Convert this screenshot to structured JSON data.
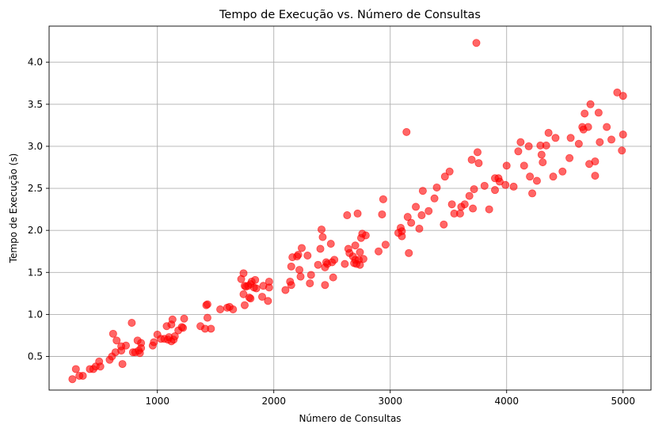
{
  "chart_data": {
    "type": "scatter",
    "title": "Tempo de Execução vs. Número de Consultas",
    "xlabel": "Número de Consultas",
    "ylabel": "Tempo de Execução (s)",
    "xlim": [
      70,
      5240
    ],
    "ylim": [
      0.1,
      4.43
    ],
    "xticks": [
      1000,
      2000,
      3000,
      4000,
      5000
    ],
    "yticks": [
      0.5,
      1.0,
      1.5,
      2.0,
      2.5,
      3.0,
      3.5,
      4.0
    ],
    "xtick_labels": [
      "1000",
      "2000",
      "3000",
      "4000",
      "5000"
    ],
    "ytick_labels": [
      "0.5",
      "1.0",
      "1.5",
      "2.0",
      "2.5",
      "3.0",
      "3.5",
      "4.0"
    ],
    "grid": true,
    "marker_color": "#ff0000",
    "marker_opacity": 0.6,
    "points": [
      [
        270,
        0.23
      ],
      [
        300,
        0.35
      ],
      [
        330,
        0.27
      ],
      [
        360,
        0.27
      ],
      [
        420,
        0.35
      ],
      [
        450,
        0.35
      ],
      [
        470,
        0.38
      ],
      [
        500,
        0.44
      ],
      [
        510,
        0.38
      ],
      [
        590,
        0.46
      ],
      [
        610,
        0.5
      ],
      [
        620,
        0.77
      ],
      [
        640,
        0.55
      ],
      [
        650,
        0.69
      ],
      [
        690,
        0.62
      ],
      [
        690,
        0.57
      ],
      [
        700,
        0.41
      ],
      [
        730,
        0.63
      ],
      [
        780,
        0.9
      ],
      [
        790,
        0.55
      ],
      [
        810,
        0.55
      ],
      [
        830,
        0.69
      ],
      [
        840,
        0.57
      ],
      [
        850,
        0.54
      ],
      [
        860,
        0.6
      ],
      [
        860,
        0.66
      ],
      [
        960,
        0.63
      ],
      [
        970,
        0.67
      ],
      [
        1000,
        0.76
      ],
      [
        1030,
        0.71
      ],
      [
        1060,
        0.71
      ],
      [
        1080,
        0.86
      ],
      [
        1090,
        0.7
      ],
      [
        1100,
        0.73
      ],
      [
        1120,
        0.68
      ],
      [
        1120,
        0.88
      ],
      [
        1130,
        0.94
      ],
      [
        1140,
        0.7
      ],
      [
        1150,
        0.74
      ],
      [
        1180,
        0.81
      ],
      [
        1210,
        0.85
      ],
      [
        1220,
        0.84
      ],
      [
        1230,
        0.95
      ],
      [
        1370,
        0.86
      ],
      [
        1410,
        0.83
      ],
      [
        1420,
        1.11
      ],
      [
        1430,
        1.12
      ],
      [
        1430,
        0.96
      ],
      [
        1460,
        0.83
      ],
      [
        1540,
        1.06
      ],
      [
        1600,
        1.08
      ],
      [
        1620,
        1.09
      ],
      [
        1650,
        1.06
      ],
      [
        1720,
        1.42
      ],
      [
        1740,
        1.24
      ],
      [
        1740,
        1.49
      ],
      [
        1750,
        1.11
      ],
      [
        1750,
        1.34
      ],
      [
        1760,
        1.33
      ],
      [
        1780,
        1.34
      ],
      [
        1790,
        1.2
      ],
      [
        1800,
        1.19
      ],
      [
        1800,
        1.36
      ],
      [
        1810,
        1.39
      ],
      [
        1830,
        1.32
      ],
      [
        1840,
        1.41
      ],
      [
        1850,
        1.31
      ],
      [
        1900,
        1.21
      ],
      [
        1910,
        1.34
      ],
      [
        1950,
        1.16
      ],
      [
        1960,
        1.39
      ],
      [
        1960,
        1.32
      ],
      [
        2100,
        1.29
      ],
      [
        2140,
        1.39
      ],
      [
        2150,
        1.35
      ],
      [
        2150,
        1.57
      ],
      [
        2160,
        1.68
      ],
      [
        2200,
        1.69
      ],
      [
        2210,
        1.71
      ],
      [
        2220,
        1.53
      ],
      [
        2230,
        1.45
      ],
      [
        2240,
        1.79
      ],
      [
        2290,
        1.7
      ],
      [
        2310,
        1.37
      ],
      [
        2320,
        1.47
      ],
      [
        2380,
        1.59
      ],
      [
        2400,
        1.78
      ],
      [
        2410,
        2.01
      ],
      [
        2420,
        1.92
      ],
      [
        2440,
        1.56
      ],
      [
        2440,
        1.35
      ],
      [
        2450,
        1.62
      ],
      [
        2460,
        1.6
      ],
      [
        2490,
        1.84
      ],
      [
        2500,
        1.62
      ],
      [
        2510,
        1.44
      ],
      [
        2520,
        1.65
      ],
      [
        2610,
        1.6
      ],
      [
        2630,
        2.18
      ],
      [
        2640,
        1.78
      ],
      [
        2650,
        1.73
      ],
      [
        2680,
        1.69
      ],
      [
        2690,
        1.61
      ],
      [
        2700,
        1.82
      ],
      [
        2700,
        1.65
      ],
      [
        2710,
        1.6
      ],
      [
        2720,
        2.2
      ],
      [
        2730,
        1.65
      ],
      [
        2740,
        1.74
      ],
      [
        2740,
        1.59
      ],
      [
        2750,
        1.91
      ],
      [
        2760,
        1.96
      ],
      [
        2770,
        1.66
      ],
      [
        2790,
        1.94
      ],
      [
        2900,
        1.75
      ],
      [
        2930,
        2.19
      ],
      [
        2940,
        2.37
      ],
      [
        2960,
        1.83
      ],
      [
        3070,
        1.97
      ],
      [
        3090,
        2.03
      ],
      [
        3100,
        1.93
      ],
      [
        3100,
        1.99
      ],
      [
        3140,
        3.17
      ],
      [
        3150,
        2.16
      ],
      [
        3160,
        1.73
      ],
      [
        3180,
        2.09
      ],
      [
        3220,
        2.28
      ],
      [
        3250,
        2.02
      ],
      [
        3270,
        2.18
      ],
      [
        3280,
        2.47
      ],
      [
        3330,
        2.23
      ],
      [
        3380,
        2.38
      ],
      [
        3400,
        2.51
      ],
      [
        3460,
        2.07
      ],
      [
        3470,
        2.64
      ],
      [
        3510,
        2.7
      ],
      [
        3530,
        2.31
      ],
      [
        3550,
        2.2
      ],
      [
        3600,
        2.2
      ],
      [
        3610,
        2.28
      ],
      [
        3640,
        2.31
      ],
      [
        3680,
        2.41
      ],
      [
        3700,
        2.84
      ],
      [
        3710,
        2.26
      ],
      [
        3720,
        2.49
      ],
      [
        3740,
        4.23
      ],
      [
        3750,
        2.93
      ],
      [
        3760,
        2.8
      ],
      [
        3810,
        2.53
      ],
      [
        3850,
        2.25
      ],
      [
        3900,
        2.48
      ],
      [
        3900,
        2.62
      ],
      [
        3930,
        2.62
      ],
      [
        3940,
        2.58
      ],
      [
        3990,
        2.54
      ],
      [
        4000,
        2.77
      ],
      [
        4060,
        2.52
      ],
      [
        4100,
        2.94
      ],
      [
        4120,
        3.05
      ],
      [
        4150,
        2.77
      ],
      [
        4190,
        3.0
      ],
      [
        4200,
        2.64
      ],
      [
        4220,
        2.44
      ],
      [
        4260,
        2.59
      ],
      [
        4290,
        3.01
      ],
      [
        4300,
        2.9
      ],
      [
        4310,
        2.81
      ],
      [
        4340,
        3.01
      ],
      [
        4360,
        3.16
      ],
      [
        4400,
        2.64
      ],
      [
        4420,
        3.1
      ],
      [
        4480,
        2.7
      ],
      [
        4540,
        2.86
      ],
      [
        4550,
        3.1
      ],
      [
        4620,
        3.03
      ],
      [
        4650,
        3.23
      ],
      [
        4660,
        3.2
      ],
      [
        4670,
        3.39
      ],
      [
        4700,
        3.23
      ],
      [
        4710,
        2.79
      ],
      [
        4720,
        3.5
      ],
      [
        4760,
        2.82
      ],
      [
        4760,
        2.65
      ],
      [
        4790,
        3.4
      ],
      [
        4800,
        3.05
      ],
      [
        4860,
        3.23
      ],
      [
        4900,
        3.08
      ],
      [
        4950,
        3.64
      ],
      [
        4990,
        2.95
      ],
      [
        5000,
        3.14
      ],
      [
        5000,
        3.6
      ]
    ]
  }
}
